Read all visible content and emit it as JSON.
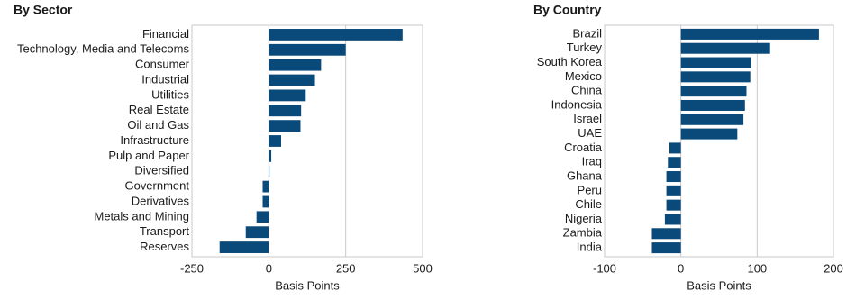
{
  "chart_data": [
    {
      "type": "bar",
      "orientation": "horizontal",
      "title": "By Sector",
      "x_label": "Basis Points",
      "categories": [
        "Financial",
        "Technology, Media and Telecoms",
        "Consumer",
        "Industrial",
        "Utilities",
        "Real Estate",
        "Oil and Gas",
        "Infrastructure",
        "Pulp and Paper",
        "Diversified",
        "Government",
        "Derivatives",
        "Metals and Mining",
        "Transport",
        "Reserves"
      ],
      "values": [
        435,
        250,
        170,
        150,
        120,
        105,
        103,
        40,
        8,
        1,
        -20,
        -20,
        -40,
        -75,
        -160
      ],
      "color": "#0a4a7a",
      "xlim": [
        -250,
        500
      ],
      "xticks": [
        -250,
        0,
        250,
        500
      ],
      "grid": true
    },
    {
      "type": "bar",
      "orientation": "horizontal",
      "title": "By Country",
      "x_label": "Basis Points",
      "categories": [
        "Brazil",
        "Turkey",
        "South Korea",
        "Mexico",
        "China",
        "Indonesia",
        "Israel",
        "UAE",
        "Croatia",
        "Iraq",
        "Ghana",
        "Peru",
        "Chile",
        "Nigeria",
        "Zambia",
        "India"
      ],
      "values": [
        181,
        117,
        92,
        91,
        86,
        84,
        82,
        74,
        -15,
        -17,
        -19,
        -19,
        -19,
        -21,
        -38,
        -38
      ],
      "color": "#0a4a7a",
      "xlim": [
        -100,
        200
      ],
      "xticks": [
        -100,
        0,
        100,
        200
      ],
      "grid": true
    }
  ]
}
